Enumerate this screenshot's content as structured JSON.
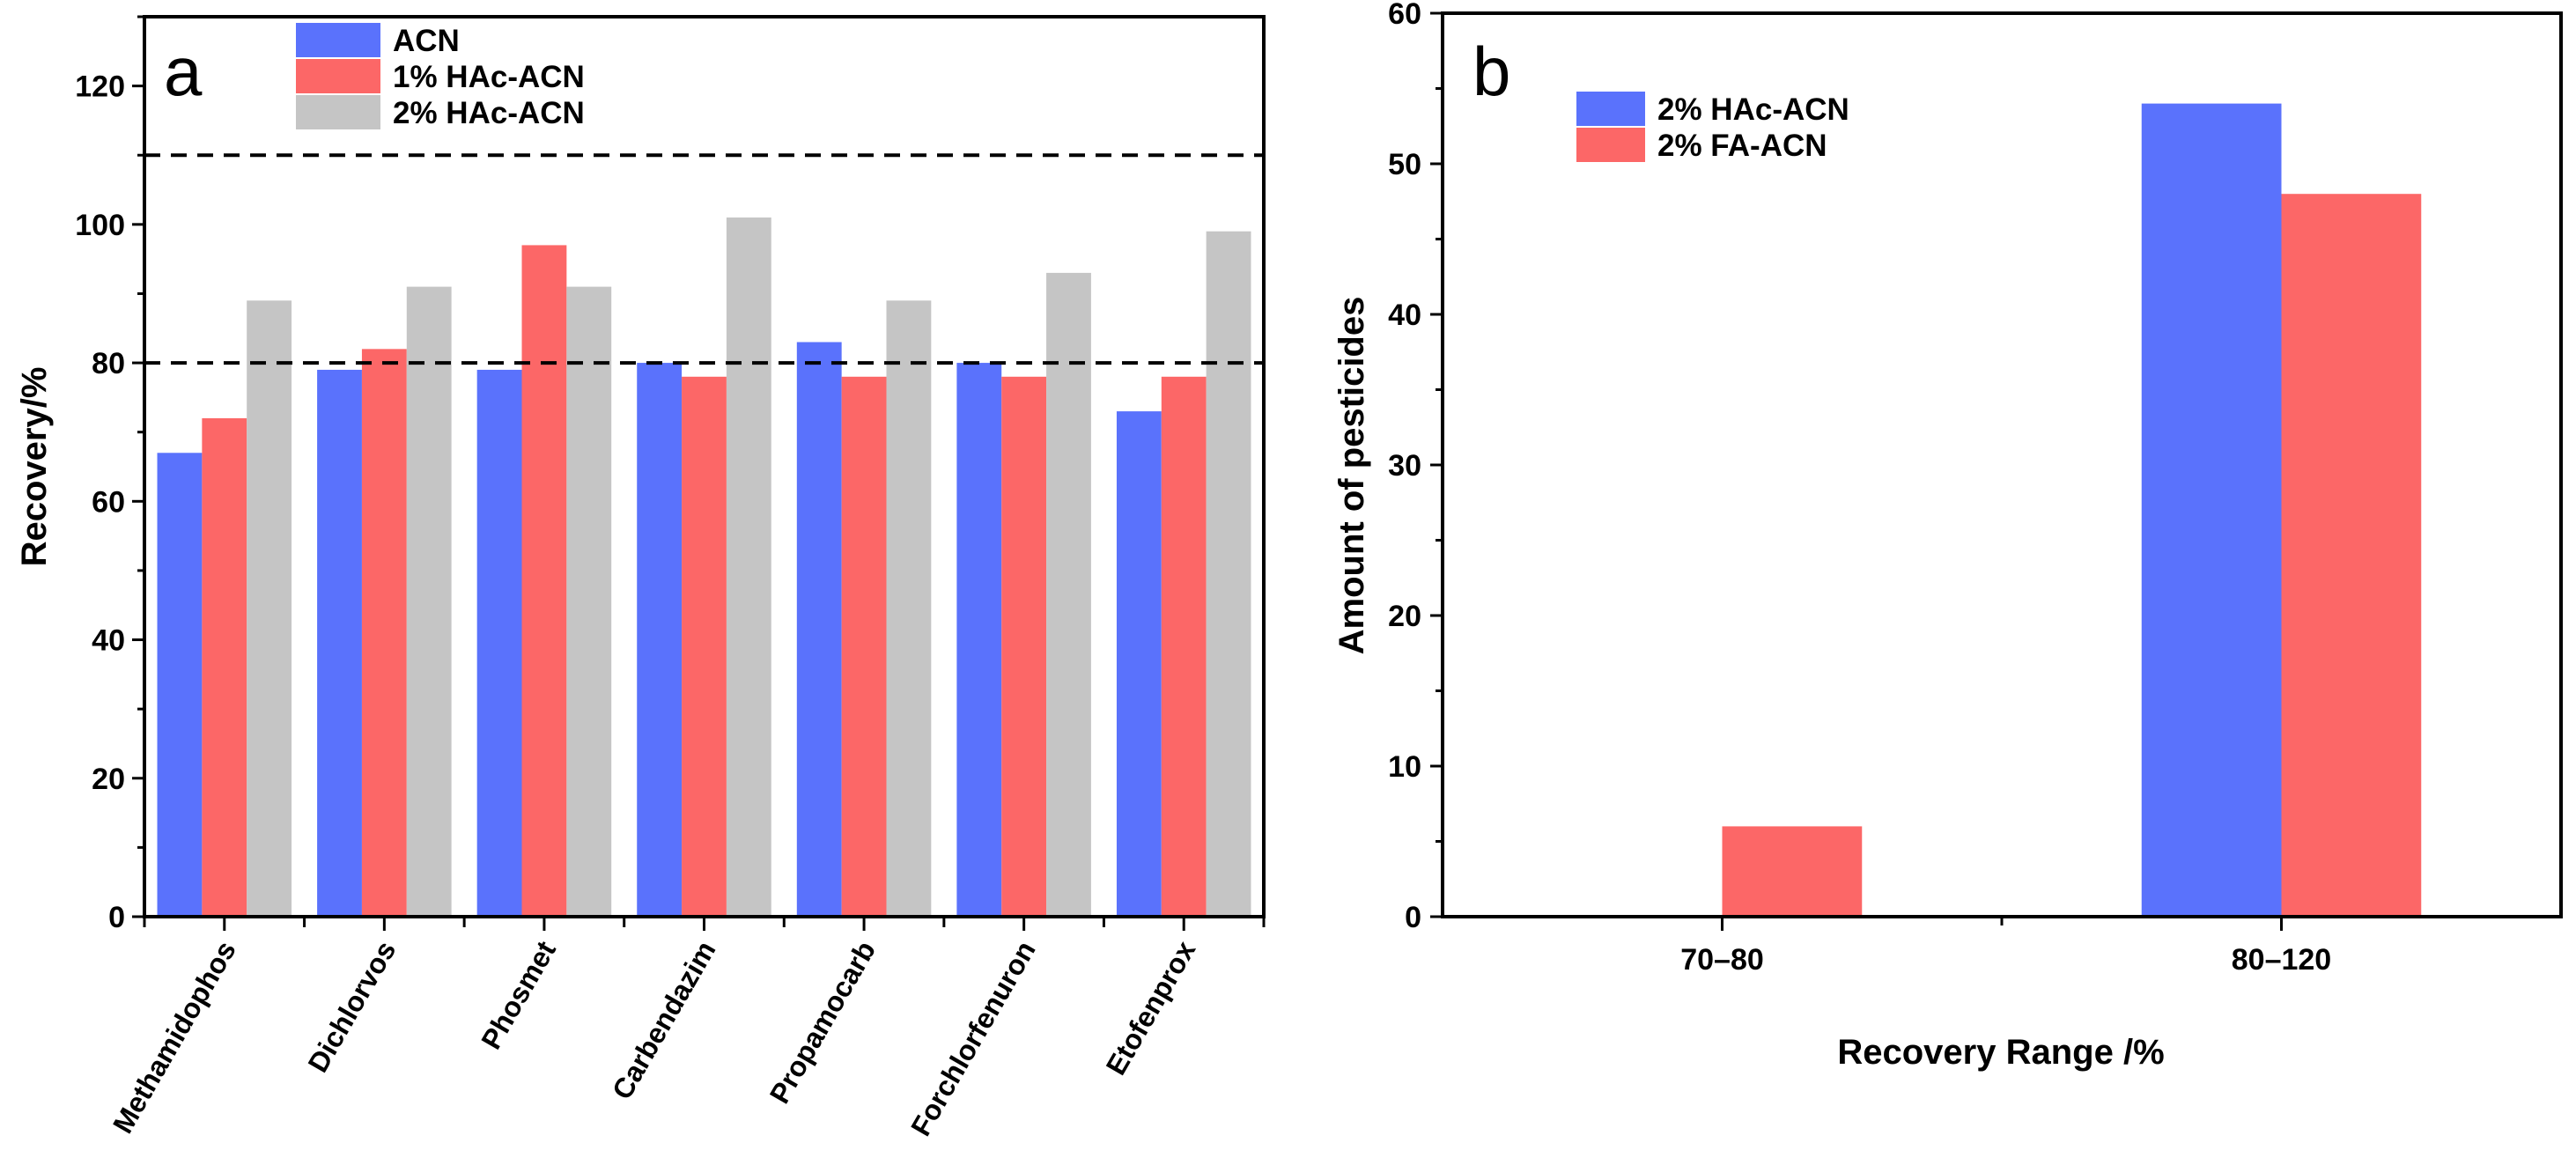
{
  "colors": {
    "blue": "#5a72fc",
    "red": "#fc6767",
    "gray": "#c5c5c5"
  },
  "chart_data": [
    {
      "type": "bar",
      "panel_label": "a",
      "xlabel": "",
      "ylabel": "Recovery/%",
      "ylim": [
        0,
        130
      ],
      "yticks": [
        0,
        20,
        40,
        60,
        80,
        100,
        120
      ],
      "categories": [
        "Methamidophos",
        "Dichlorvos",
        "Phosmet",
        "Carbendazim",
        "Propamocarb",
        "Forchlorfenuron",
        "Etofenprox"
      ],
      "series": [
        {
          "name": "ACN",
          "color": "#5a72fc",
          "values": [
            67,
            79,
            79,
            80,
            83,
            80,
            73
          ]
        },
        {
          "name": "1% HAc-ACN",
          "color": "#fc6767",
          "values": [
            72,
            82,
            97,
            78,
            78,
            78,
            78
          ]
        },
        {
          "name": "2% HAc-ACN",
          "color": "#c5c5c5",
          "values": [
            89,
            91,
            91,
            101,
            89,
            93,
            99
          ]
        }
      ],
      "reference_lines": [
        80,
        110
      ],
      "legend": "top-left",
      "grid": false
    },
    {
      "type": "bar",
      "panel_label": "b",
      "xlabel": "Recovery Range /%",
      "ylabel": "Amount of pesticides",
      "ylim": [
        0,
        60
      ],
      "yticks": [
        0,
        10,
        20,
        30,
        40,
        50,
        60
      ],
      "categories": [
        "70–80",
        "80–120"
      ],
      "series": [
        {
          "name": "2% HAc-ACN",
          "color": "#5a72fc",
          "values": [
            0,
            54
          ]
        },
        {
          "name": "2% FA-ACN",
          "color": "#fc6767",
          "values": [
            6,
            48
          ]
        }
      ],
      "legend": "top-left",
      "grid": false
    }
  ]
}
